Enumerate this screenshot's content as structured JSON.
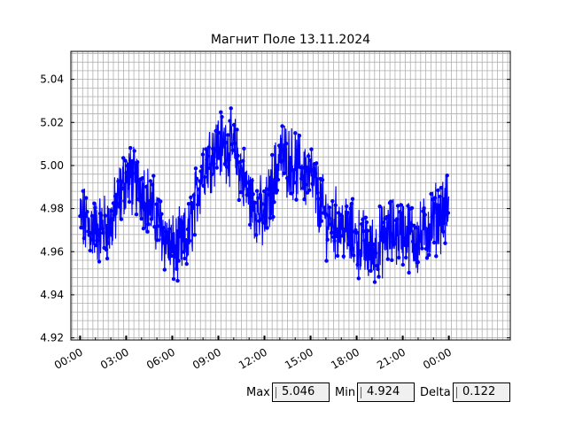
{
  "chart_data": {
    "type": "line",
    "title": "Магнит Поле 13.11.2024",
    "x_tick_labels": [
      "00:00",
      "03:00",
      "06:00",
      "09:00",
      "12:00",
      "15:00",
      "18:00",
      "21:00",
      "00:00"
    ],
    "y_tick_labels": [
      "4.92",
      "4.94",
      "4.96",
      "4.98",
      "5.00",
      "5.02",
      "5.04"
    ],
    "xlim_hours": [
      -0.6,
      28.0
    ],
    "ylim": [
      4.919,
      5.053
    ],
    "grid": true,
    "series": [
      {
        "color": "#0000ff",
        "marker": "circle",
        "x_hours": [
          0,
          1,
          2,
          3,
          4,
          5,
          6,
          7,
          8,
          9,
          10,
          11,
          12,
          13,
          14,
          15,
          16,
          17,
          18,
          19,
          20,
          21,
          22,
          23,
          24
        ],
        "y": [
          4.975,
          4.97,
          4.972,
          4.995,
          4.99,
          4.975,
          4.96,
          4.965,
          5.0,
          5.01,
          5.008,
          4.985,
          4.975,
          5.005,
          5.0,
          4.995,
          4.975,
          4.972,
          4.965,
          4.96,
          4.968,
          4.97,
          4.965,
          4.975,
          4.98
        ]
      }
    ],
    "noise_amplitude": 0.013,
    "visual_max": 5.046,
    "visual_min": 4.924
  },
  "stats": {
    "max_label": "Max",
    "max_value": "5.046",
    "min_label": "Min",
    "min_value": "4.924",
    "delta_label": "Delta",
    "delta_value": "0.122"
  }
}
